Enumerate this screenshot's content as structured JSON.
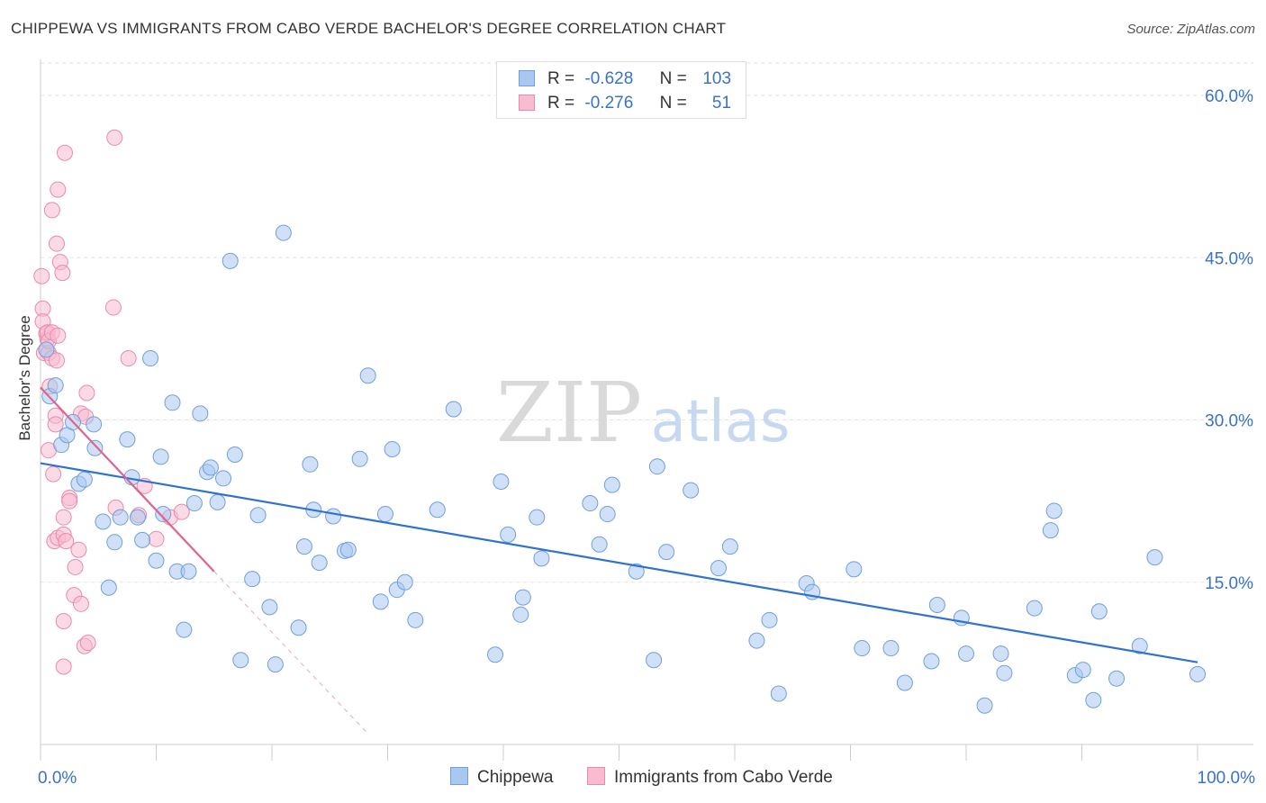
{
  "title": "CHIPPEWA VS IMMIGRANTS FROM CABO VERDE BACHELOR'S DEGREE CORRELATION CHART",
  "source": "Source: ZipAtlas.com",
  "watermark": {
    "zip": "ZIP",
    "atlas": "atlas"
  },
  "legend": {
    "rows": [
      {
        "r_label": "R =",
        "r_value": "-0.628",
        "n_label": "N =",
        "n_value": "103"
      },
      {
        "r_label": "R =",
        "r_value": "-0.276",
        "n_label": "N =",
        "n_value": "51"
      }
    ]
  },
  "chart_data": {
    "type": "scatter",
    "title": "CHIPPEWA VS IMMIGRANTS FROM CABO VERDE BACHELOR'S DEGREE CORRELATION CHART",
    "xlabel": "",
    "ylabel": "Bachelor's Degree",
    "xlim": [
      0,
      100
    ],
    "ylim": [
      0,
      63
    ],
    "x_tick_labels": [
      "0.0%",
      "100.0%"
    ],
    "y_ticks": [
      15,
      30,
      45,
      60
    ],
    "y_tick_labels": [
      "15.0%",
      "30.0%",
      "45.0%",
      "60.0%"
    ],
    "grid": true,
    "legend_position": "top-center",
    "colors": {
      "chippewa_fill": "#a9c8f0",
      "chippewa_stroke": "#6f9fdc",
      "chippewa_line": "#2f72d0",
      "cabo_fill": "#f7bcd0",
      "cabo_stroke": "#e98aab",
      "cabo_line": "#e0628e",
      "value_text": "#3a72c8"
    },
    "series": [
      {
        "name": "Chippewa",
        "trend": {
          "x": [
            0,
            100
          ],
          "y": [
            26.0,
            7.6
          ]
        },
        "points": [
          [
            0.5,
            36.5
          ],
          [
            0.8,
            32.2
          ],
          [
            1.3,
            33.2
          ],
          [
            1.8,
            27.7
          ],
          [
            2.3,
            28.6
          ],
          [
            2.8,
            29.8
          ],
          [
            3.3,
            24.1
          ],
          [
            3.8,
            24.5
          ],
          [
            4.6,
            29.6
          ],
          [
            4.7,
            27.4
          ],
          [
            5.4,
            20.6
          ],
          [
            5.9,
            14.5
          ],
          [
            6.4,
            18.7
          ],
          [
            6.9,
            21.0
          ],
          [
            7.5,
            28.2
          ],
          [
            7.9,
            24.7
          ],
          [
            8.4,
            21.0
          ],
          [
            8.8,
            18.9
          ],
          [
            9.5,
            35.7
          ],
          [
            10.0,
            17.0
          ],
          [
            10.4,
            26.6
          ],
          [
            10.6,
            21.3
          ],
          [
            11.4,
            31.6
          ],
          [
            11.8,
            16.0
          ],
          [
            12.4,
            10.6
          ],
          [
            12.8,
            16.0
          ],
          [
            13.3,
            22.3
          ],
          [
            13.8,
            30.6
          ],
          [
            14.4,
            25.2
          ],
          [
            14.7,
            25.6
          ],
          [
            15.3,
            22.4
          ],
          [
            15.8,
            24.6
          ],
          [
            16.4,
            44.7
          ],
          [
            16.8,
            26.8
          ],
          [
            17.3,
            7.8
          ],
          [
            18.3,
            15.3
          ],
          [
            18.8,
            21.2
          ],
          [
            19.8,
            12.7
          ],
          [
            20.3,
            7.4
          ],
          [
            21.0,
            47.3
          ],
          [
            22.3,
            10.8
          ],
          [
            22.8,
            18.3
          ],
          [
            23.3,
            25.9
          ],
          [
            23.6,
            21.7
          ],
          [
            24.1,
            16.8
          ],
          [
            25.3,
            21.1
          ],
          [
            26.3,
            17.9
          ],
          [
            26.6,
            18.0
          ],
          [
            27.6,
            26.4
          ],
          [
            28.3,
            34.1
          ],
          [
            29.4,
            13.2
          ],
          [
            29.8,
            21.3
          ],
          [
            30.4,
            27.3
          ],
          [
            30.8,
            14.3
          ],
          [
            31.5,
            15.0
          ],
          [
            32.4,
            11.5
          ],
          [
            34.3,
            21.7
          ],
          [
            35.7,
            31.0
          ],
          [
            39.3,
            8.3
          ],
          [
            39.8,
            24.3
          ],
          [
            40.4,
            19.4
          ],
          [
            41.5,
            12.0
          ],
          [
            41.7,
            13.6
          ],
          [
            42.9,
            21.0
          ],
          [
            43.3,
            17.2
          ],
          [
            47.5,
            22.3
          ],
          [
            48.3,
            18.5
          ],
          [
            49.0,
            21.3
          ],
          [
            49.4,
            24.0
          ],
          [
            51.5,
            16.0
          ],
          [
            53.0,
            7.8
          ],
          [
            53.3,
            25.7
          ],
          [
            54.1,
            17.8
          ],
          [
            56.2,
            23.5
          ],
          [
            58.6,
            16.3
          ],
          [
            59.6,
            18.3
          ],
          [
            61.9,
            9.6
          ],
          [
            63.0,
            11.5
          ],
          [
            63.8,
            4.7
          ],
          [
            66.2,
            14.9
          ],
          [
            66.7,
            14.1
          ],
          [
            70.3,
            16.2
          ],
          [
            71.0,
            8.9
          ],
          [
            73.5,
            8.9
          ],
          [
            74.7,
            5.7
          ],
          [
            77.0,
            7.7
          ],
          [
            77.5,
            12.9
          ],
          [
            79.6,
            11.7
          ],
          [
            80.0,
            8.4
          ],
          [
            81.6,
            3.6
          ],
          [
            83.0,
            8.4
          ],
          [
            83.3,
            6.6
          ],
          [
            85.9,
            12.6
          ],
          [
            87.3,
            19.8
          ],
          [
            87.6,
            21.6
          ],
          [
            89.4,
            6.4
          ],
          [
            90.1,
            6.9
          ],
          [
            91.0,
            4.1
          ],
          [
            91.5,
            12.3
          ],
          [
            93.0,
            6.1
          ],
          [
            95.0,
            9.1
          ],
          [
            96.3,
            17.3
          ],
          [
            100.0,
            6.5
          ]
        ]
      },
      {
        "name": "Immigrants from Cabo Verde",
        "trend": {
          "x": [
            0,
            15
          ],
          "y": [
            33.0,
            16.0
          ]
        },
        "trend_extension": {
          "x": [
            15,
            28.3
          ],
          "y": [
            16.0,
            1.0
          ]
        },
        "points": [
          [
            0.1,
            43.3
          ],
          [
            0.2,
            40.3
          ],
          [
            0.2,
            39.1
          ],
          [
            0.3,
            36.2
          ],
          [
            0.5,
            38.0
          ],
          [
            0.6,
            37.5
          ],
          [
            0.6,
            38.1
          ],
          [
            0.7,
            27.2
          ],
          [
            0.7,
            36.2
          ],
          [
            0.7,
            37.3
          ],
          [
            0.8,
            33.1
          ],
          [
            1.0,
            38.1
          ],
          [
            1.0,
            35.7
          ],
          [
            1.0,
            49.4
          ],
          [
            1.1,
            25.0
          ],
          [
            1.2,
            18.8
          ],
          [
            1.3,
            30.4
          ],
          [
            1.3,
            29.6
          ],
          [
            1.4,
            46.3
          ],
          [
            1.4,
            35.5
          ],
          [
            1.5,
            51.3
          ],
          [
            1.5,
            37.8
          ],
          [
            1.5,
            19.1
          ],
          [
            1.7,
            44.6
          ],
          [
            1.9,
            43.6
          ],
          [
            2.0,
            21.0
          ],
          [
            2.0,
            19.4
          ],
          [
            2.0,
            11.4
          ],
          [
            2.0,
            7.2
          ],
          [
            2.1,
            54.7
          ],
          [
            2.2,
            18.8
          ],
          [
            2.5,
            22.8
          ],
          [
            2.5,
            22.5
          ],
          [
            2.9,
            13.8
          ],
          [
            3.0,
            16.4
          ],
          [
            3.3,
            18.0
          ],
          [
            3.5,
            13.0
          ],
          [
            3.5,
            30.6
          ],
          [
            3.8,
            9.1
          ],
          [
            3.9,
            30.3
          ],
          [
            4.0,
            32.5
          ],
          [
            4.1,
            9.4
          ],
          [
            6.3,
            40.4
          ],
          [
            6.4,
            56.1
          ],
          [
            6.5,
            21.9
          ],
          [
            7.6,
            35.7
          ],
          [
            8.5,
            21.2
          ],
          [
            9.0,
            23.9
          ],
          [
            10.0,
            19.0
          ],
          [
            11.2,
            21.0
          ],
          [
            12.2,
            21.5
          ]
        ]
      }
    ]
  }
}
